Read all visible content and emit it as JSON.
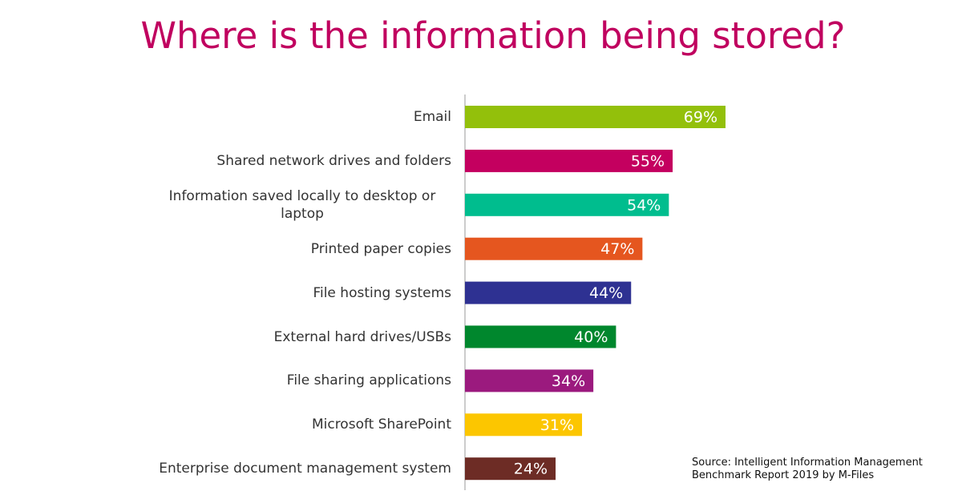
{
  "chart_data": {
    "type": "bar",
    "orientation": "horizontal",
    "title": "Where is the information being stored?",
    "categories": [
      "Email",
      "Shared network drives and folders",
      "Information saved locally to desktop or laptop",
      "Printed paper copies",
      "File hosting systems",
      "External hard drives/USBs",
      "File sharing applications",
      "Microsoft SharePoint",
      "Enterprise document management system"
    ],
    "values": [
      69,
      55,
      54,
      47,
      44,
      40,
      34,
      31,
      24
    ],
    "value_labels": [
      "69%",
      "55%",
      "54%",
      "47%",
      "44%",
      "40%",
      "34%",
      "31%",
      "24%"
    ],
    "colors": [
      "#93c00b",
      "#c4005f",
      "#00bd8e",
      "#e5561f",
      "#2e3192",
      "#00872d",
      "#9b1a7e",
      "#fcc600",
      "#6d2c25"
    ],
    "source": "Source: Intelligent Information Management Benchmark Report 2019 by M-Files"
  }
}
